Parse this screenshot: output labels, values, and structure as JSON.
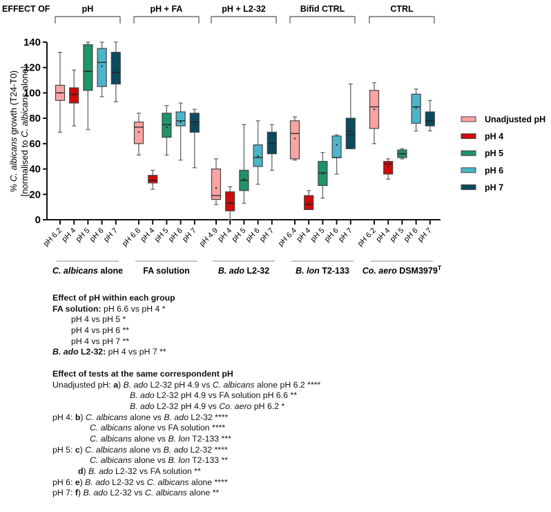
{
  "chart_data": {
    "type": "box",
    "header_label": "EFFECT OF",
    "ylabel_line1_parts": [
      "% ",
      "C. albicans",
      " growth (T24-T0)"
    ],
    "ylabel_line2_parts": [
      "[normalised to ",
      "C. albicans",
      " alone]"
    ],
    "ylim": [
      0,
      140
    ],
    "yticks": [
      "0",
      "20",
      "40",
      "60",
      "80",
      "100",
      "120",
      "140"
    ],
    "legend": [
      {
        "label": "Unadjusted pH",
        "color": "#F9A3A3"
      },
      {
        "label": "pH 4",
        "color": "#D10A0A"
      },
      {
        "label": "pH 5",
        "color": "#1F9466"
      },
      {
        "label": "pH 6",
        "color": "#4DB4C9"
      },
      {
        "label": "pH 7",
        "color": "#0C4A60"
      }
    ],
    "groups": [
      {
        "effect": "pH",
        "name_parts": [
          {
            "t": "C. albicans",
            "s": "i"
          },
          {
            "t": " alone",
            "s": "n"
          }
        ],
        "ticks": [
          "pH 6.2",
          "pH 4",
          "pH 5",
          "pH 6",
          "pH 7"
        ],
        "boxes": [
          {
            "min": 69,
            "q1": 94,
            "median": 100,
            "q3": 106,
            "max": 132,
            "mean": 100
          },
          {
            "min": 74,
            "q1": 92,
            "median": 99,
            "q3": 104,
            "max": 118,
            "mean": 98
          },
          {
            "min": 71,
            "q1": 102,
            "median": 117,
            "q3": 138,
            "max": 140,
            "mean": 117
          },
          {
            "min": 97,
            "q1": 105,
            "median": 124,
            "q3": 135,
            "max": 140,
            "mean": 121
          },
          {
            "min": 93,
            "q1": 107,
            "median": 116,
            "q3": 132,
            "max": 140,
            "mean": 118
          }
        ]
      },
      {
        "effect": "pH + FA",
        "name_parts": [
          {
            "t": "FA solution",
            "s": "n"
          }
        ],
        "ticks": [
          "pH 6.6",
          "pH 4",
          "pH 5",
          "pH 6",
          "pH 7"
        ],
        "boxes": [
          {
            "min": 51,
            "q1": 60,
            "median": 73,
            "q3": 77,
            "max": 84,
            "mean": 69
          },
          {
            "min": 24,
            "q1": 29,
            "median": 31,
            "q3": 35,
            "max": 39,
            "mean": 31
          },
          {
            "min": 51,
            "q1": 65,
            "median": 75,
            "q3": 84,
            "max": 90,
            "mean": 73
          },
          {
            "min": 47,
            "q1": 74,
            "median": 78,
            "q3": 85,
            "max": 92,
            "mean": 77
          },
          {
            "min": 41,
            "q1": 69,
            "median": 77,
            "q3": 84,
            "max": 87,
            "mean": 75
          }
        ]
      },
      {
        "effect": "pH + L2-32",
        "name_parts": [
          {
            "t": "B. ado",
            "s": "i"
          },
          {
            "t": " L2-32",
            "s": "n"
          }
        ],
        "ticks": [
          "pH 4.9",
          "pH 4",
          "pH 5",
          "pH 6",
          "pH 7"
        ],
        "boxes": [
          {
            "min": 12,
            "q1": 16,
            "median": 19,
            "q3": 40,
            "max": 48,
            "mean": 25
          },
          {
            "min": 0,
            "q1": 7,
            "median": 13,
            "q3": 22,
            "max": 26,
            "mean": 14
          },
          {
            "min": 13,
            "q1": 23,
            "median": 31,
            "q3": 39,
            "max": 75,
            "mean": 32
          },
          {
            "min": 28,
            "q1": 42,
            "median": 49,
            "q3": 59,
            "max": 78,
            "mean": 50
          },
          {
            "min": 39,
            "q1": 52,
            "median": 60,
            "q3": 69,
            "max": 75,
            "mean": 60
          }
        ]
      },
      {
        "effect": "Bifid CTRL",
        "name_parts": [
          {
            "t": "B. lon",
            "s": "i"
          },
          {
            "t": " T2-133",
            "s": "n"
          }
        ],
        "ticks": [
          "pH 6.4",
          "pH 4",
          "pH 5",
          "pH 6",
          "pH 7"
        ],
        "boxes": [
          {
            "min": 47,
            "q1": 48,
            "median": 68,
            "q3": 78,
            "max": 81,
            "mean": 64
          },
          {
            "min": 8,
            "q1": 8,
            "median": 12,
            "q3": 19,
            "max": 23,
            "mean": 13
          },
          {
            "min": 17,
            "q1": 27,
            "median": 37,
            "q3": 46,
            "max": 53,
            "mean": 36
          },
          {
            "min": 36,
            "q1": 49,
            "median": 49,
            "q3": 66,
            "max": 67,
            "mean": 59
          },
          {
            "min": 56,
            "q1": 56,
            "median": 67,
            "q3": 80,
            "max": 107,
            "mean": 70
          }
        ]
      },
      {
        "effect": "CTRL",
        "name_parts": [
          {
            "t": "Co. aero",
            "s": "bi"
          },
          {
            "t": " DSM3979",
            "s": "b"
          },
          {
            "t": "T",
            "s": "sup"
          }
        ],
        "ticks": [
          "pH 6.2",
          "pH 4",
          "pH 5",
          "pH 6",
          "pH 7"
        ],
        "boxes": [
          {
            "min": 60,
            "q1": 72,
            "median": 89,
            "q3": 102,
            "max": 108,
            "mean": 87
          },
          {
            "min": 32,
            "q1": 36,
            "median": 44,
            "q3": 46,
            "max": 48,
            "mean": 42
          },
          {
            "min": 48,
            "q1": 49,
            "median": 52,
            "q3": 55,
            "max": 56,
            "mean": 52
          },
          {
            "min": 70,
            "q1": 76,
            "median": 89,
            "q3": 99,
            "max": 103,
            "mean": 88
          },
          {
            "min": 70,
            "q1": 74,
            "median": 78,
            "q3": 85,
            "max": 94,
            "mean": 80
          }
        ]
      }
    ]
  },
  "notes": [
    [
      {
        "t": "Effect of pH within each group",
        "s": "b"
      }
    ],
    [
      {
        "t": "FA solution:",
        "s": "b"
      },
      {
        "t": " pH 6.6 vs pH 4 *",
        "s": "n"
      }
    ],
    [
      {
        "t": "pH 4 vs pH 5 *",
        "s": "n"
      }
    ],
    [
      {
        "t": "pH 4 vs pH 6 **",
        "s": "n"
      }
    ],
    [
      {
        "t": "pH 4 vs pH 7 **",
        "s": "n"
      }
    ],
    [
      {
        "t": "B. ado",
        "s": "bi"
      },
      {
        "t": " L2-32:",
        "s": "b"
      },
      {
        "t": " pH 4 vs pH 7 **",
        "s": "n"
      }
    ],
    [],
    [
      {
        "t": "Effect of tests at the same correspondent pH",
        "s": "b"
      }
    ],
    [
      {
        "t": "Unadjusted pH: ",
        "s": "n"
      },
      {
        "t": "a",
        "s": "b"
      },
      {
        "t": ") ",
        "s": "n"
      },
      {
        "t": "B. ado",
        "s": "i"
      },
      {
        "t": " L2-32 pH 4.9 vs ",
        "s": "n"
      },
      {
        "t": "C. albicans",
        "s": "i"
      },
      {
        "t": " alone pH 6.2 ****",
        "s": "n"
      }
    ],
    [
      {
        "t": "B. ado",
        "s": "i"
      },
      {
        "t": " L2-32 pH 4.9 vs FA solution pH 6.6 **",
        "s": "n"
      }
    ],
    [
      {
        "t": "B. ado",
        "s": "i"
      },
      {
        "t": " L2-32 pH 4.9 vs ",
        "s": "n"
      },
      {
        "t": "Co. aero",
        "s": "i"
      },
      {
        "t": " pH 6.2 *",
        "s": "n"
      }
    ],
    [
      {
        "t": "pH 4: ",
        "s": "n"
      },
      {
        "t": "b",
        "s": "b"
      },
      {
        "t": ") ",
        "s": "n"
      },
      {
        "t": "C. albicans",
        "s": "i"
      },
      {
        "t": " alone vs ",
        "s": "n"
      },
      {
        "t": "B. ado",
        "s": "i"
      },
      {
        "t": " L2-32 ****",
        "s": "n"
      }
    ],
    [
      {
        "t": "C. albicans",
        "s": "i"
      },
      {
        "t": " alone vs FA solution ****",
        "s": "n"
      }
    ],
    [
      {
        "t": "C. albicans",
        "s": "i"
      },
      {
        "t": " alone vs ",
        "s": "n"
      },
      {
        "t": "B. lon",
        "s": "i"
      },
      {
        "t": " T2-133 ***",
        "s": "n"
      }
    ],
    [
      {
        "t": "pH 5: ",
        "s": "n"
      },
      {
        "t": "c",
        "s": "b"
      },
      {
        "t": ") ",
        "s": "n"
      },
      {
        "t": "C. albicans",
        "s": "i"
      },
      {
        "t": " alone vs ",
        "s": "n"
      },
      {
        "t": "B. ado",
        "s": "i"
      },
      {
        "t": " L2-32 ****",
        "s": "n"
      }
    ],
    [
      {
        "t": "C. albicans",
        "s": "i"
      },
      {
        "t": " alone vs ",
        "s": "n"
      },
      {
        "t": "B. lon",
        "s": "i"
      },
      {
        "t": " T2-133 **",
        "s": "n"
      }
    ],
    [
      {
        "t": "d",
        "s": "b"
      },
      {
        "t": ") ",
        "s": "n"
      },
      {
        "t": "B. ado",
        "s": "i"
      },
      {
        "t": " L2-32 vs FA solution **",
        "s": "n"
      }
    ],
    [
      {
        "t": "pH 6: ",
        "s": "n"
      },
      {
        "t": "e",
        "s": "b"
      },
      {
        "t": ") ",
        "s": "n"
      },
      {
        "t": "B. ado",
        "s": "i"
      },
      {
        "t": " L2-32 vs ",
        "s": "n"
      },
      {
        "t": "C. albicans",
        "s": "i"
      },
      {
        "t": " alone ****",
        "s": "n"
      }
    ],
    [
      {
        "t": "pH 7: ",
        "s": "n"
      },
      {
        "t": "f",
        "s": "b"
      },
      {
        "t": ") ",
        "s": "n"
      },
      {
        "t": "B. ado",
        "s": "i"
      },
      {
        "t": " L2-32 vs ",
        "s": "n"
      },
      {
        "t": "C. albicans",
        "s": "i"
      },
      {
        "t": " alone **",
        "s": "n"
      }
    ]
  ]
}
